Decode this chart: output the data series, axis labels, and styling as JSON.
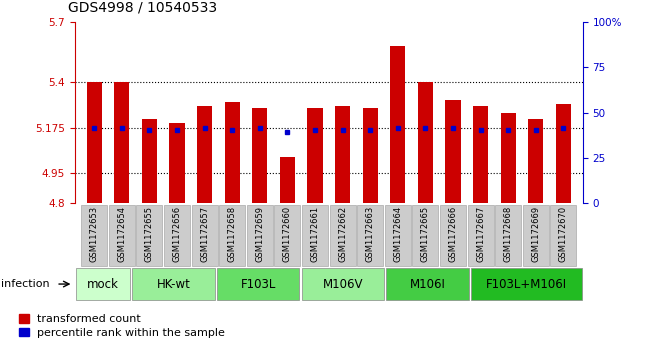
{
  "title": "GDS4998 / 10540533",
  "samples": [
    "GSM1172653",
    "GSM1172654",
    "GSM1172655",
    "GSM1172656",
    "GSM1172657",
    "GSM1172658",
    "GSM1172659",
    "GSM1172660",
    "GSM1172661",
    "GSM1172662",
    "GSM1172663",
    "GSM1172664",
    "GSM1172665",
    "GSM1172666",
    "GSM1172667",
    "GSM1172668",
    "GSM1172669",
    "GSM1172670"
  ],
  "bar_values": [
    5.4,
    5.4,
    5.22,
    5.2,
    5.28,
    5.3,
    5.27,
    5.03,
    5.27,
    5.28,
    5.27,
    5.58,
    5.4,
    5.31,
    5.28,
    5.25,
    5.22,
    5.29
  ],
  "blue_dot_values": [
    5.175,
    5.175,
    5.165,
    5.165,
    5.175,
    5.165,
    5.175,
    5.155,
    5.165,
    5.165,
    5.165,
    5.175,
    5.175,
    5.175,
    5.165,
    5.165,
    5.165,
    5.175
  ],
  "y_min": 4.8,
  "y_max": 5.7,
  "y_ticks": [
    4.8,
    4.95,
    5.175,
    5.4,
    5.7
  ],
  "y_tick_labels": [
    "4.8",
    "4.95",
    "5.175",
    "5.4",
    "5.7"
  ],
  "right_y_ticks": [
    0,
    25,
    50,
    75,
    100
  ],
  "right_y_tick_labels": [
    "0",
    "25",
    "50",
    "75",
    "100%"
  ],
  "bar_color": "#cc0000",
  "dot_color": "#0000cc",
  "groups": [
    {
      "label": "mock",
      "start": 0,
      "end": 2,
      "color": "#ccffcc"
    },
    {
      "label": "HK-wt",
      "start": 2,
      "end": 5,
      "color": "#99ee99"
    },
    {
      "label": "F103L",
      "start": 5,
      "end": 8,
      "color": "#66dd66"
    },
    {
      "label": "M106V",
      "start": 8,
      "end": 11,
      "color": "#99ee99"
    },
    {
      "label": "M106I",
      "start": 11,
      "end": 14,
      "color": "#44cc44"
    },
    {
      "label": "F103L+M106I",
      "start": 14,
      "end": 18,
      "color": "#22bb22"
    }
  ],
  "dotted_lines": [
    4.95,
    5.175,
    5.4
  ],
  "title_fontsize": 10,
  "tick_fontsize": 7.5,
  "sample_fontsize": 6.0,
  "group_fontsize": 8.5,
  "legend_fontsize": 8
}
